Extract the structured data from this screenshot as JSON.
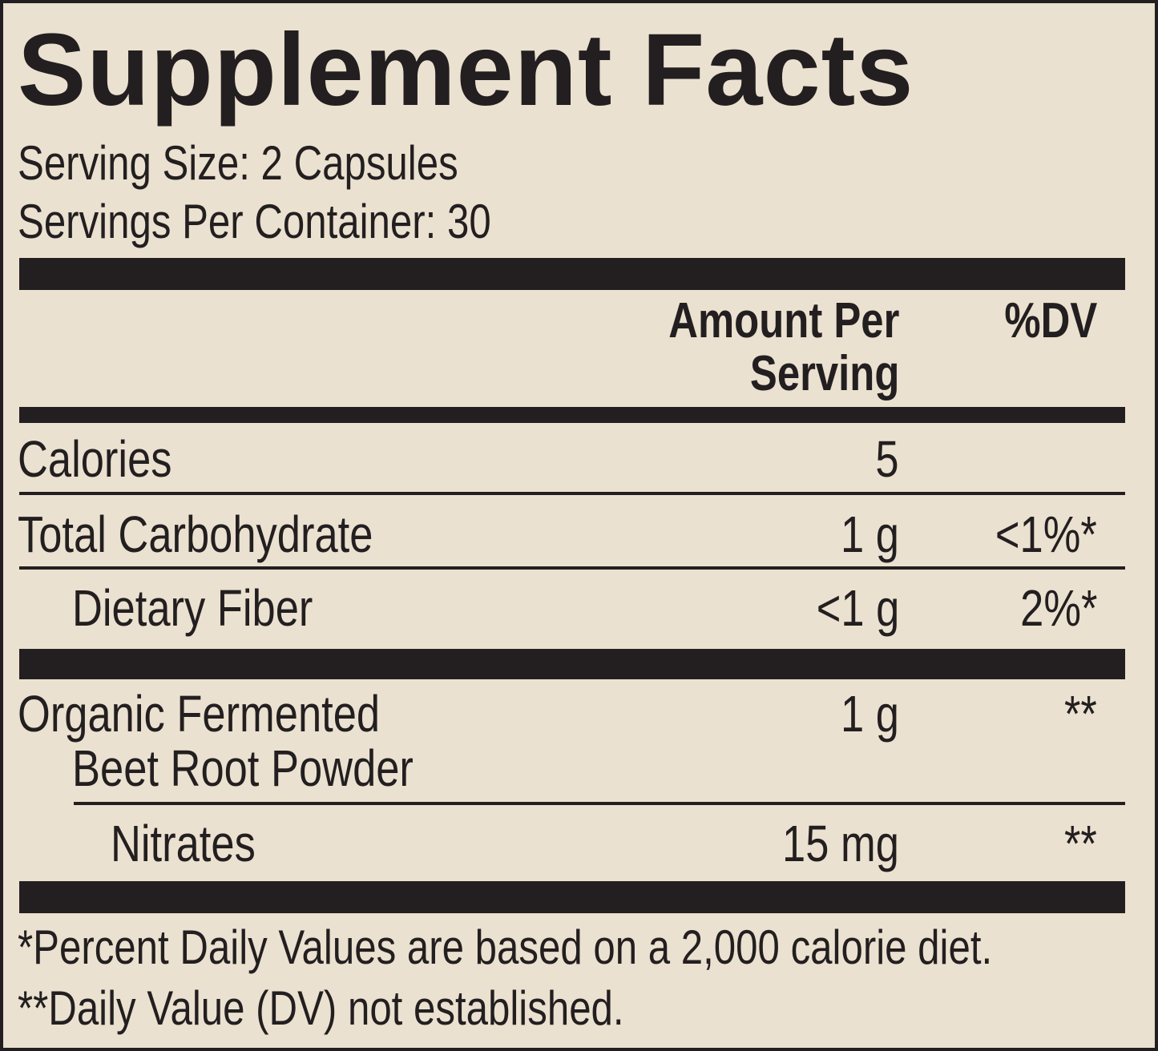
{
  "title": "Supplement Facts",
  "serving_size": "Serving Size: 2 Capsules",
  "servings_per_container": "Servings Per Container: 30",
  "header": {
    "amount_line1": "Amount Per",
    "amount_line2": "Serving",
    "dv": "%DV"
  },
  "rows": [
    {
      "name": "Calories",
      "amount": "5",
      "dv": ""
    },
    {
      "name": "Total Carbohydrate",
      "amount": "1 g",
      "dv": "<1%*"
    },
    {
      "name": "Dietary Fiber",
      "amount": "<1 g",
      "dv": "2%*"
    },
    {
      "name_line1": "Organic Fermented",
      "name_line2": "Beet Root Powder",
      "amount": "1 g",
      "dv": "**"
    },
    {
      "name": "Nitrates",
      "amount": "15 mg",
      "dv": "**"
    }
  ],
  "footnotes": [
    "*Percent Daily Values are based on a 2,000 calorie diet.",
    "**Daily Value (DV) not established."
  ],
  "colors": {
    "background": "#ebe1d0",
    "ink": "#231f20"
  }
}
